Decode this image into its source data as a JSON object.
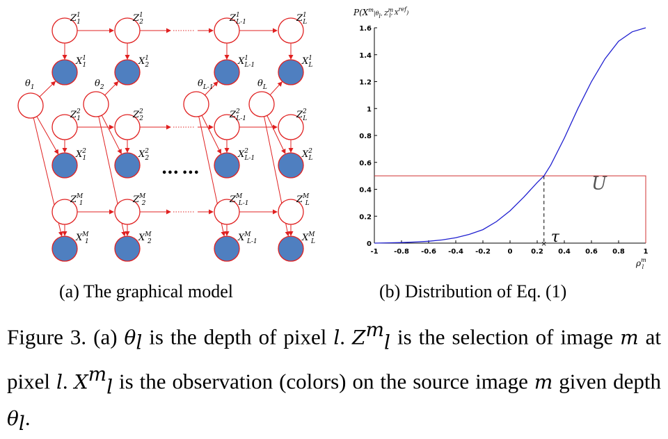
{
  "graph": {
    "node_labels": {
      "z": [
        "Z_1^1",
        "Z_2^1",
        "Z_{L-1}^1",
        "Z_L^1",
        "Z_1^2",
        "Z_2^2",
        "Z_{L-1}^2",
        "Z_L^2",
        "Z_1^M",
        "Z_2^M",
        "Z_{L-1}^M",
        "Z_L^M"
      ],
      "x": [
        "X_1^1",
        "X_2^1",
        "X_{L-1}^1",
        "X_L^1",
        "X_1^2",
        "X_2^2",
        "X_{L-1}^2",
        "X_L^2",
        "X_1^M",
        "X_2^M",
        "X_{L-1}^M",
        "X_L^M"
      ],
      "theta": [
        "θ_1",
        "θ_2",
        "θ_{L-1}",
        "θ_L"
      ]
    },
    "ellipsis": "•••  •••",
    "colors": {
      "edge": "#e02020",
      "observed_fill": "#4f7fc0",
      "node_stroke": "#e02020"
    }
  },
  "chart_data": {
    "type": "line",
    "ylabel": "P(X^m|θ_l, Z_l^m, X^ref)",
    "xlabel": "ρ_l^m",
    "xlim": [
      -1,
      1
    ],
    "ylim": [
      0,
      1.6
    ],
    "x_ticks": [
      "-1",
      "-0.8",
      "-0.6",
      "-0.4",
      "-0.2",
      "0",
      "0.2",
      "0.4",
      "0.6",
      "0.8",
      "1"
    ],
    "y_ticks": [
      "0",
      "0.2",
      "0.4",
      "0.6",
      "0.8",
      "1",
      "1.2",
      "1.4",
      "1.6"
    ],
    "series": [
      {
        "color": "#1f1fd0",
        "x": [
          -1,
          -0.9,
          -0.8,
          -0.7,
          -0.6,
          -0.5,
          -0.4,
          -0.3,
          -0.2,
          -0.1,
          0,
          0.1,
          0.2,
          0.25,
          0.3,
          0.4,
          0.5,
          0.6,
          0.7,
          0.8,
          0.9,
          1
        ],
        "y": [
          0,
          0.002,
          0.004,
          0.008,
          0.014,
          0.024,
          0.04,
          0.065,
          0.1,
          0.16,
          0.24,
          0.34,
          0.45,
          0.5,
          0.58,
          0.78,
          1.0,
          1.2,
          1.37,
          1.5,
          1.57,
          1.6
        ]
      }
    ],
    "annotations": {
      "uniform_level": 0.5,
      "uniform_label": "U",
      "tau_x": 0.25,
      "tau_label": "τ",
      "rect_color": "#d03030"
    }
  },
  "captions": {
    "a": "(a) The graphical model",
    "b": "(b) Distribution of Eq. (1)",
    "figure": {
      "p1": "Figure 3. (a) ",
      "m1": "θ",
      "s1": "l",
      "p2": " is the depth of pixel ",
      "m2": "l",
      "p3": ". ",
      "m3": "Z",
      "s3a": "m",
      "s3b": "l",
      "p4": " is the selection of image ",
      "m4": "m",
      "p5": " at pixel ",
      "m5": "l",
      "p6": ". ",
      "m6": "X",
      "s6a": "m",
      "s6b": "l",
      "p7": " is the observation (colors) on the source image ",
      "m7": "m",
      "p8": " given depth ",
      "m8": "θ",
      "s8": "l",
      "p9": "."
    }
  }
}
